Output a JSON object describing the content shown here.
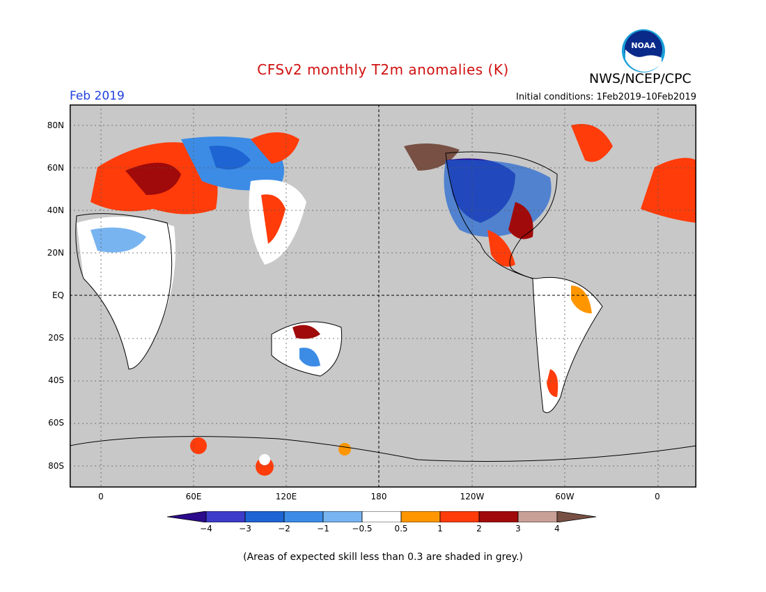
{
  "header": {
    "title": "CFSv2 monthly T2m anomalies (K)",
    "agency": "NWS/NCEP/CPC",
    "month": "Feb 2019",
    "initial_conditions": "Initial conditions: 1Feb2019–10Feb2019",
    "logo_text": "NOAA"
  },
  "map": {
    "background_color": "#c8c8c8",
    "gridlines": "dotted",
    "lat_labels": [
      "80N",
      "60N",
      "40N",
      "20N",
      "EQ",
      "20S",
      "40S",
      "60S",
      "80S"
    ],
    "lon_labels": [
      "0",
      "60E",
      "120E",
      "180",
      "120W",
      "60W",
      "0"
    ]
  },
  "colorbar": {
    "colors": [
      "#2b0a8c",
      "#3c3cc8",
      "#1e64d2",
      "#3c8ce6",
      "#78b4f0",
      "#ffffff",
      "#ff9600",
      "#ff3c0a",
      "#a00a0a",
      "#c8a096",
      "#785044"
    ],
    "labels": [
      "−4",
      "−3",
      "−2",
      "−1",
      "−0.5",
      "0.5",
      "1",
      "2",
      "3",
      "4"
    ]
  },
  "footnote": "(Areas of expected skill less than 0.3 are shaded in grey.)"
}
